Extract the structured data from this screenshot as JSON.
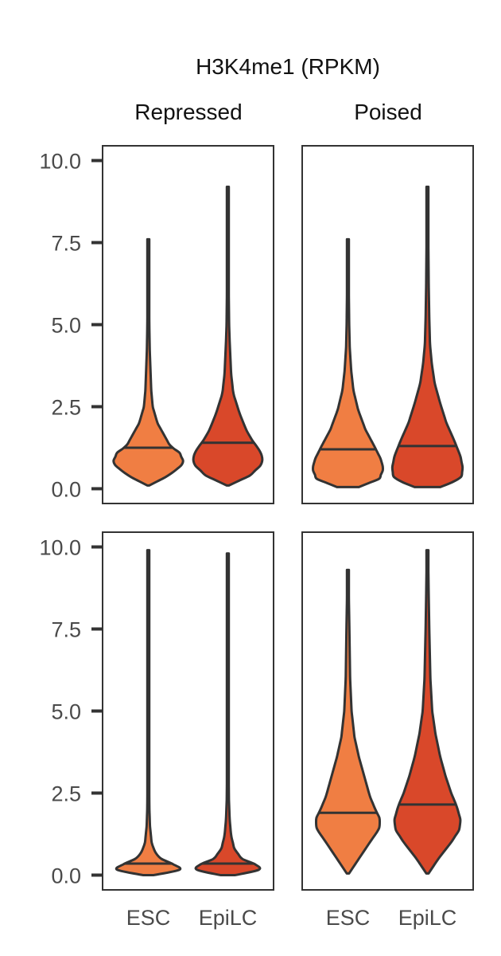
{
  "chart_data": {
    "type": "violin",
    "title": "H3K4me1 (RPKM)",
    "column_headers": [
      "Repressed",
      "Poised"
    ],
    "categories": [
      "ESC",
      "EpiLC"
    ],
    "series_colors": {
      "ESC": "#F07E43",
      "EpiLC": "#D9482A"
    },
    "outline_color": "#333333",
    "ylim": [
      -0.45,
      10.45
    ],
    "yticks": [
      0.0,
      2.5,
      5.0,
      7.5,
      10.0
    ],
    "ytick_labels": [
      "0.0",
      "2.5",
      "5.0",
      "7.5",
      "10.0"
    ],
    "panels": [
      {
        "row": 0,
        "col": 0,
        "violins": [
          {
            "category": "ESC",
            "min": 0.1,
            "max": 7.6,
            "median": 1.25,
            "profile": [
              [
                0.1,
                0.03
              ],
              [
                0.4,
                0.55
              ],
              [
                0.7,
                0.9
              ],
              [
                0.85,
                0.95
              ],
              [
                1.1,
                0.85
              ],
              [
                1.3,
                0.6
              ],
              [
                1.6,
                0.45
              ],
              [
                2.0,
                0.25
              ],
              [
                2.5,
                0.12
              ],
              [
                3.0,
                0.08
              ],
              [
                3.6,
                0.06
              ],
              [
                4.2,
                0.04
              ],
              [
                4.8,
                0.03
              ],
              [
                5.3,
                0.025
              ],
              [
                6.2,
                0.02
              ],
              [
                7.6,
                0.018
              ]
            ]
          },
          {
            "category": "EpiLC",
            "min": 0.1,
            "max": 9.2,
            "median": 1.4,
            "profile": [
              [
                0.1,
                0.03
              ],
              [
                0.4,
                0.6
              ],
              [
                0.75,
                0.93
              ],
              [
                0.95,
                0.95
              ],
              [
                1.2,
                0.85
              ],
              [
                1.5,
                0.65
              ],
              [
                1.8,
                0.5
              ],
              [
                2.3,
                0.32
              ],
              [
                2.9,
                0.15
              ],
              [
                3.5,
                0.09
              ],
              [
                4.0,
                0.07
              ],
              [
                4.5,
                0.05
              ],
              [
                5.0,
                0.035
              ],
              [
                6.0,
                0.025
              ],
              [
                7.5,
                0.02
              ],
              [
                9.2,
                0.018
              ]
            ]
          }
        ]
      },
      {
        "row": 0,
        "col": 1,
        "violins": [
          {
            "category": "ESC",
            "min": 0.05,
            "max": 7.6,
            "median": 1.2,
            "profile": [
              [
                0.05,
                0.3
              ],
              [
                0.3,
                0.85
              ],
              [
                0.6,
                0.97
              ],
              [
                0.9,
                0.9
              ],
              [
                1.3,
                0.72
              ],
              [
                1.8,
                0.48
              ],
              [
                2.4,
                0.28
              ],
              [
                3.0,
                0.15
              ],
              [
                3.6,
                0.09
              ],
              [
                4.3,
                0.05
              ],
              [
                5.0,
                0.035
              ],
              [
                6.0,
                0.025
              ],
              [
                7.6,
                0.018
              ]
            ]
          },
          {
            "category": "EpiLC",
            "min": 0.05,
            "max": 9.2,
            "median": 1.3,
            "profile": [
              [
                0.05,
                0.35
              ],
              [
                0.3,
                0.9
              ],
              [
                0.6,
                0.97
              ],
              [
                1.0,
                0.9
              ],
              [
                1.5,
                0.72
              ],
              [
                2.0,
                0.52
              ],
              [
                2.6,
                0.35
              ],
              [
                3.2,
                0.2
              ],
              [
                3.8,
                0.12
              ],
              [
                4.4,
                0.07
              ],
              [
                5.2,
                0.05
              ],
              [
                6.2,
                0.035
              ],
              [
                7.5,
                0.025
              ],
              [
                9.2,
                0.018
              ]
            ]
          }
        ]
      },
      {
        "row": 1,
        "col": 0,
        "violins": [
          {
            "category": "ESC",
            "min": 0.0,
            "max": 9.9,
            "median": 0.35,
            "profile": [
              [
                0.0,
                0.15
              ],
              [
                0.12,
                0.7
              ],
              [
                0.2,
                0.97
              ],
              [
                0.3,
                0.75
              ],
              [
                0.45,
                0.4
              ],
              [
                0.7,
                0.18
              ],
              [
                1.0,
                0.09
              ],
              [
                1.5,
                0.045
              ],
              [
                2.0,
                0.03
              ],
              [
                3.0,
                0.02
              ],
              [
                5.0,
                0.016
              ],
              [
                9.9,
                0.015
              ]
            ]
          },
          {
            "category": "EpiLC",
            "min": 0.0,
            "max": 9.8,
            "median": 0.35,
            "profile": [
              [
                0.0,
                0.2
              ],
              [
                0.12,
                0.75
              ],
              [
                0.22,
                0.97
              ],
              [
                0.35,
                0.7
              ],
              [
                0.5,
                0.38
              ],
              [
                0.8,
                0.18
              ],
              [
                1.2,
                0.09
              ],
              [
                1.7,
                0.05
              ],
              [
                2.3,
                0.03
              ],
              [
                3.5,
                0.02
              ],
              [
                5.0,
                0.016
              ],
              [
                9.8,
                0.015
              ]
            ]
          }
        ]
      },
      {
        "row": 1,
        "col": 1,
        "violins": [
          {
            "category": "ESC",
            "min": 0.05,
            "max": 9.3,
            "median": 1.9,
            "profile": [
              [
                0.05,
                0.03
              ],
              [
                0.5,
                0.3
              ],
              [
                1.0,
                0.6
              ],
              [
                1.4,
                0.85
              ],
              [
                1.7,
                0.88
              ],
              [
                2.0,
                0.75
              ],
              [
                2.4,
                0.6
              ],
              [
                3.0,
                0.45
              ],
              [
                3.6,
                0.3
              ],
              [
                4.2,
                0.18
              ],
              [
                5.0,
                0.1
              ],
              [
                6.0,
                0.06
              ],
              [
                7.5,
                0.04
              ],
              [
                8.5,
                0.025
              ],
              [
                9.3,
                0.018
              ]
            ]
          },
          {
            "category": "EpiLC",
            "min": 0.05,
            "max": 9.9,
            "median": 2.15,
            "profile": [
              [
                0.05,
                0.03
              ],
              [
                0.5,
                0.3
              ],
              [
                1.0,
                0.65
              ],
              [
                1.4,
                0.88
              ],
              [
                1.7,
                0.9
              ],
              [
                2.1,
                0.8
              ],
              [
                2.5,
                0.65
              ],
              [
                3.0,
                0.5
              ],
              [
                3.6,
                0.35
              ],
              [
                4.3,
                0.22
              ],
              [
                5.0,
                0.13
              ],
              [
                6.0,
                0.08
              ],
              [
                7.5,
                0.05
              ],
              [
                8.5,
                0.035
              ],
              [
                9.9,
                0.018
              ]
            ]
          }
        ]
      }
    ]
  }
}
